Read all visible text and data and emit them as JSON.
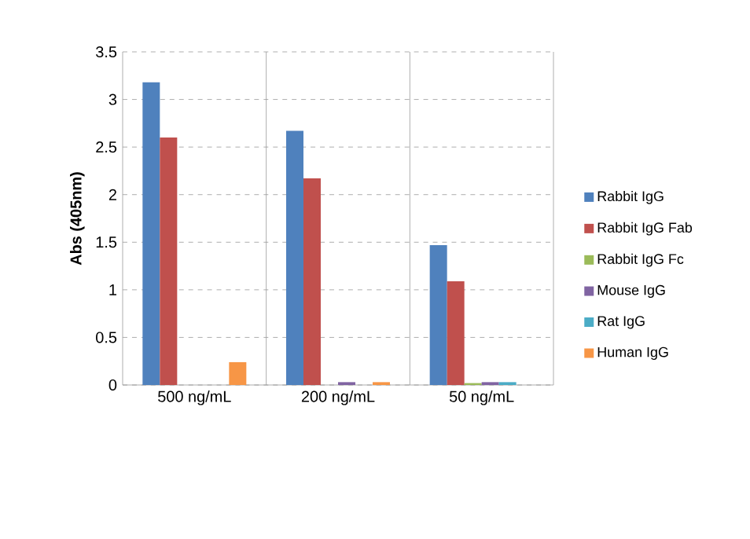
{
  "chart_data": {
    "type": "bar",
    "ylabel": "Abs (405nm)",
    "categories": [
      "500 ng/mL",
      "200 ng/mL",
      "50 ng/mL"
    ],
    "series": [
      {
        "name": "Rabbit IgG",
        "color": "#4f81bd",
        "values": [
          3.18,
          2.67,
          1.47
        ]
      },
      {
        "name": "Rabbit IgG Fab",
        "color": "#c0504d",
        "values": [
          2.6,
          2.17,
          1.09
        ]
      },
      {
        "name": "Rabbit IgG Fc",
        "color": "#9bbb59",
        "values": [
          0,
          0,
          0.02
        ]
      },
      {
        "name": "Mouse IgG",
        "color": "#8064a2",
        "values": [
          0,
          0.03,
          0.03
        ]
      },
      {
        "name": "Rat IgG",
        "color": "#4bacc6",
        "values": [
          0,
          0,
          0.03
        ]
      },
      {
        "name": "Human IgG",
        "color": "#f79646",
        "values": [
          0.24,
          0.03,
          0
        ]
      }
    ],
    "ylim": [
      0,
      3.5
    ],
    "yticks": [
      0,
      0.5,
      1,
      1.5,
      2,
      2.5,
      3,
      3.5
    ],
    "grid": true,
    "legend": "right"
  }
}
